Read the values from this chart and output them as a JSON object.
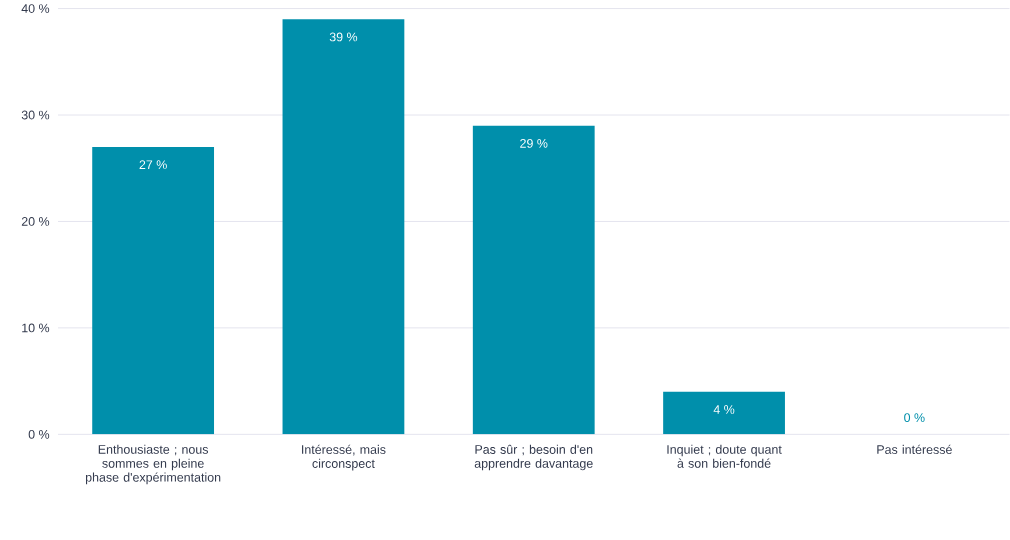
{
  "chart_data": {
    "type": "bar",
    "categories": [
      "Enthousiaste ; nous sommes en pleine phase d'expérimentation",
      "Intéressé, mais circonspect",
      "Pas sûr ; besoin d'en apprendre davantage",
      "Inquiet ; doute quant à son bien-fondé",
      "Pas intéressé"
    ],
    "values": [
      27,
      39,
      29,
      4,
      0
    ],
    "value_labels": [
      "27 %",
      "39 %",
      "29 %",
      "4 %",
      "0 %"
    ],
    "color": "#008fab",
    "ylim": [
      0,
      40
    ],
    "yticks": [
      {
        "value": 0,
        "label": "0 %"
      },
      {
        "value": 10,
        "label": "10 %"
      },
      {
        "value": 20,
        "label": "20 %"
      },
      {
        "value": 30,
        "label": "30 %"
      },
      {
        "value": 40,
        "label": "40 %"
      }
    ],
    "grid": "y"
  }
}
